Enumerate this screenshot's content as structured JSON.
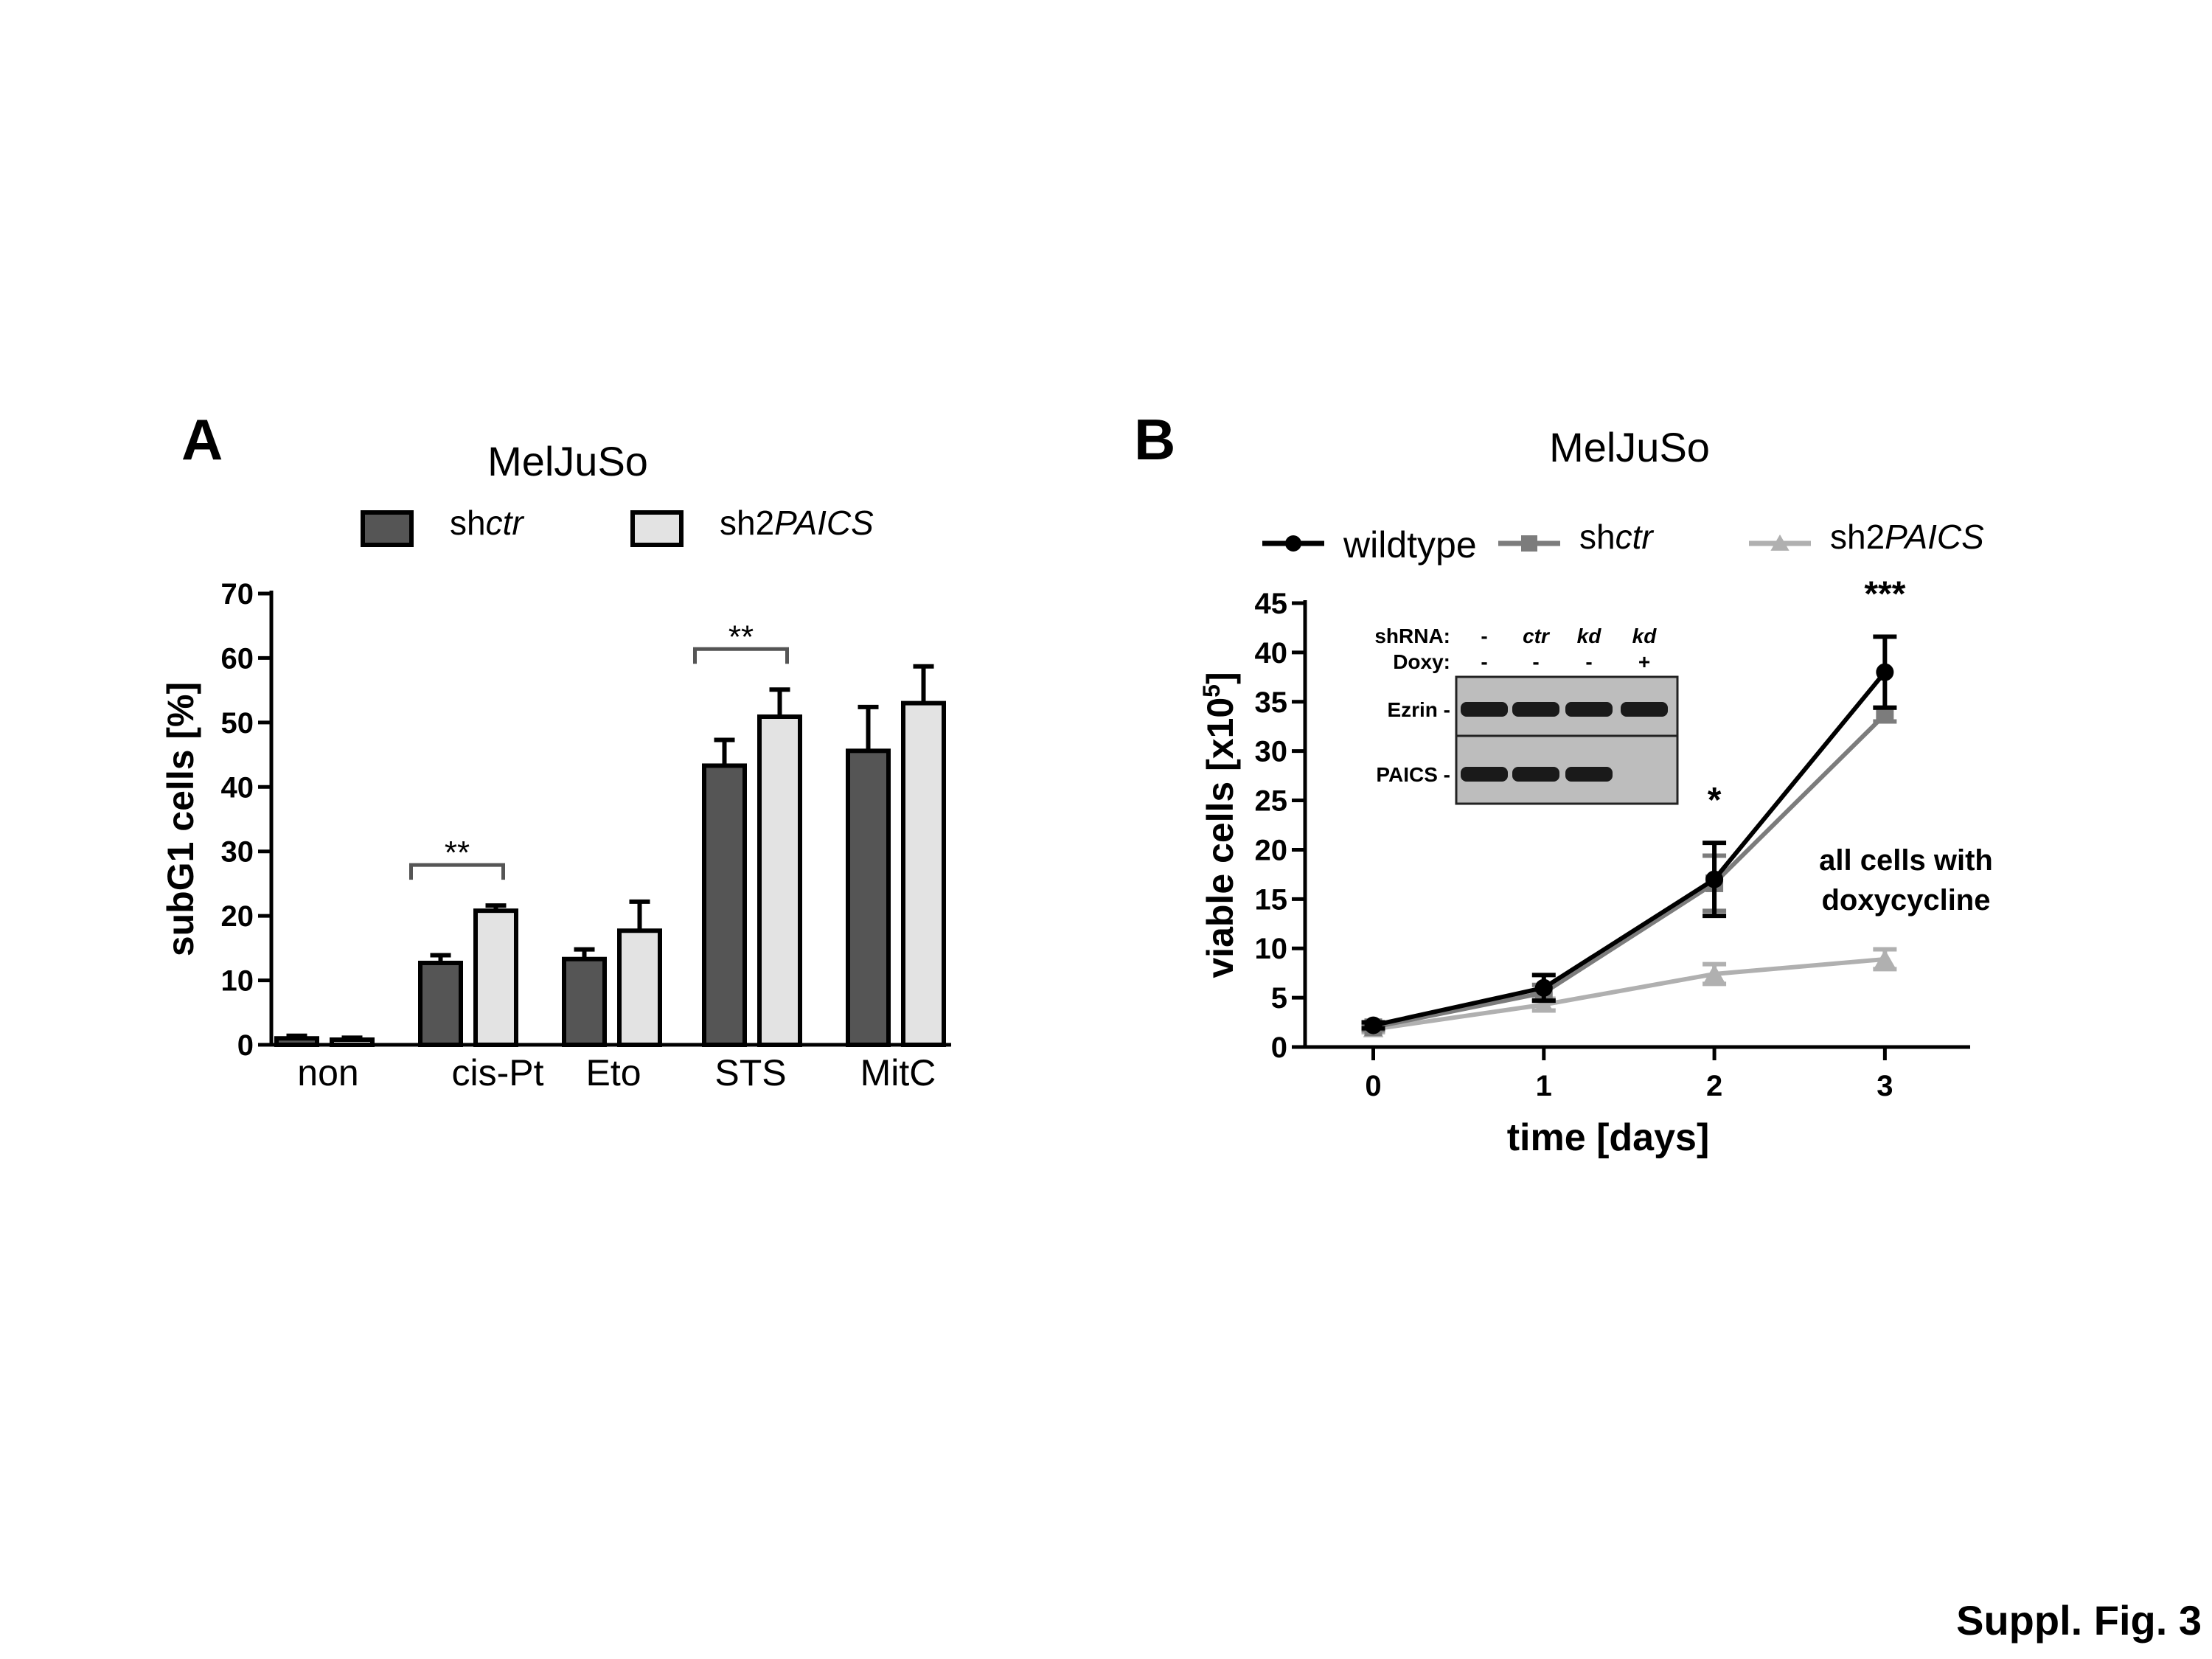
{
  "colors": {
    "shctr": "#555555",
    "sh2paics": "#e3e3e3",
    "wildtype": "#000000",
    "shctr_line": "#7c7c7c",
    "sh2paics_line": "#b0b0b0"
  },
  "footer": {
    "label": "Suppl. Fig. 3"
  },
  "chart_data": [
    {
      "panel": "A",
      "type": "bar",
      "title": "MelJuSo",
      "ylabel": "subG1 cells [%]",
      "ylim": [
        0,
        70
      ],
      "yticks": [
        0,
        10,
        20,
        30,
        40,
        50,
        60,
        70
      ],
      "categories": [
        "non",
        "cis-Pt",
        "Eto",
        "STS",
        "MitC"
      ],
      "legend": [
        {
          "prefix": "sh",
          "italic": "ctr"
        },
        {
          "prefix": "sh2",
          "italic": "PAICS"
        }
      ],
      "series": [
        {
          "values": [
            1,
            12.7,
            13.3,
            43.3,
            45.6
          ],
          "errors": [
            0.4,
            1.2,
            1.5,
            4.0,
            6.8
          ]
        },
        {
          "values": [
            0.8,
            20.8,
            17.7,
            50.9,
            53.0
          ],
          "errors": [
            0.3,
            0.8,
            4.5,
            4.2,
            5.7
          ]
        }
      ],
      "significance": [
        {
          "category": "cis-Pt",
          "label": "**"
        },
        {
          "category": "STS",
          "label": "**"
        }
      ]
    },
    {
      "panel": "B",
      "type": "line",
      "title": "MelJuSo",
      "xlabel": "time [days]",
      "ylabel_main": "viable cells [x10",
      "ylabel_sup": "5",
      "ylabel_end": "]",
      "xlim": [
        -0.4,
        3.5
      ],
      "ylim": [
        0,
        45
      ],
      "xticks": [
        0,
        1,
        2,
        3
      ],
      "yticks": [
        0,
        5,
        10,
        15,
        20,
        25,
        30,
        35,
        40,
        45
      ],
      "legend": [
        {
          "prefix": "wildtype",
          "italic": ""
        },
        {
          "prefix": "sh",
          "italic": "ctr"
        },
        {
          "prefix": "sh2",
          "italic": "PAICS"
        }
      ],
      "series": [
        {
          "x": [
            0,
            1,
            2,
            3
          ],
          "values": [
            2.2,
            6.0,
            17.0,
            38.0
          ],
          "errors": [
            0.3,
            1.3,
            3.7,
            3.6
          ]
        },
        {
          "x": [
            0,
            1,
            2,
            3
          ],
          "values": [
            2.0,
            5.5,
            16.6,
            33.7
          ],
          "errors": [
            0.3,
            0.8,
            2.8,
            0.7
          ]
        },
        {
          "x": [
            0,
            1,
            2,
            3
          ],
          "values": [
            1.8,
            4.3,
            7.4,
            8.9
          ],
          "errors": [
            0.3,
            0.6,
            1.0,
            1.0
          ]
        }
      ],
      "significance": [
        {
          "x": 2,
          "label": "*"
        },
        {
          "x": 3,
          "label": "***"
        }
      ],
      "annotation": [
        "all cells with",
        "doxycycline"
      ],
      "inset": {
        "row_labels": [
          "shRNA:",
          "Doxy:"
        ],
        "lanes": [
          {
            "shrna": "-",
            "doxy": "-"
          },
          {
            "shrna": "ctr",
            "doxy": "-"
          },
          {
            "shrna": "kd",
            "doxy": "-"
          },
          {
            "shrna": "kd",
            "doxy": "+"
          }
        ],
        "bands": [
          {
            "label": "Ezrin -",
            "intensity": [
              1,
              1,
              1,
              1
            ]
          },
          {
            "label": "PAICS -",
            "intensity": [
              1,
              1,
              1,
              0
            ]
          }
        ]
      }
    }
  ]
}
